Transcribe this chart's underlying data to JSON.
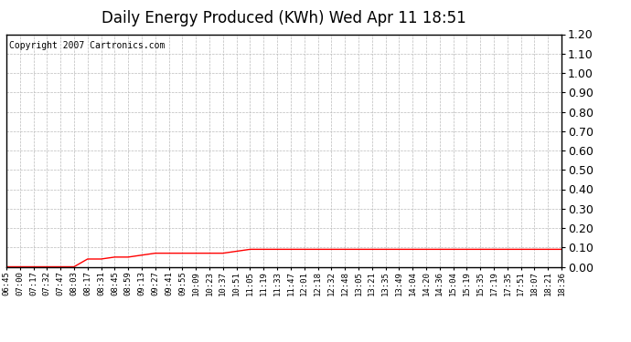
{
  "title": "Daily Energy Produced (KWh) Wed Apr 11 18:51",
  "copyright": "Copyright 2007 Cartronics.com",
  "background_color": "#ffffff",
  "plot_bg_color": "#ffffff",
  "grid_color": "#bbbbbb",
  "line_color": "#ff0000",
  "ylim": [
    0.0,
    1.2
  ],
  "yticks": [
    0.0,
    0.1,
    0.2,
    0.3,
    0.4,
    0.5,
    0.6,
    0.7,
    0.8,
    0.9,
    1.0,
    1.1,
    1.2
  ],
  "x_labels": [
    "06:45",
    "07:00",
    "07:17",
    "07:32",
    "07:47",
    "08:03",
    "08:17",
    "08:31",
    "08:45",
    "08:59",
    "09:13",
    "09:27",
    "09:41",
    "09:55",
    "10:09",
    "10:23",
    "10:37",
    "10:51",
    "11:05",
    "11:19",
    "11:33",
    "11:47",
    "12:01",
    "12:18",
    "12:32",
    "12:48",
    "13:05",
    "13:21",
    "13:35",
    "13:49",
    "14:04",
    "14:20",
    "14:36",
    "15:04",
    "15:19",
    "15:35",
    "17:19",
    "17:35",
    "17:51",
    "18:07",
    "18:21",
    "18:36"
  ],
  "y_values": [
    0.0,
    0.0,
    0.0,
    0.0,
    0.0,
    0.0,
    0.04,
    0.04,
    0.05,
    0.05,
    0.06,
    0.07,
    0.07,
    0.07,
    0.07,
    0.07,
    0.07,
    0.08,
    0.09,
    0.09,
    0.09,
    0.09,
    0.09,
    0.09,
    0.09,
    0.09,
    0.09,
    0.09,
    0.09,
    0.09,
    0.09,
    0.09,
    0.09,
    0.09,
    0.09,
    0.09,
    0.09,
    0.09,
    0.09,
    0.09,
    0.09,
    0.09
  ],
  "title_fontsize": 12,
  "ytick_fontsize": 9,
  "xtick_fontsize": 6.5,
  "copyright_fontsize": 7
}
